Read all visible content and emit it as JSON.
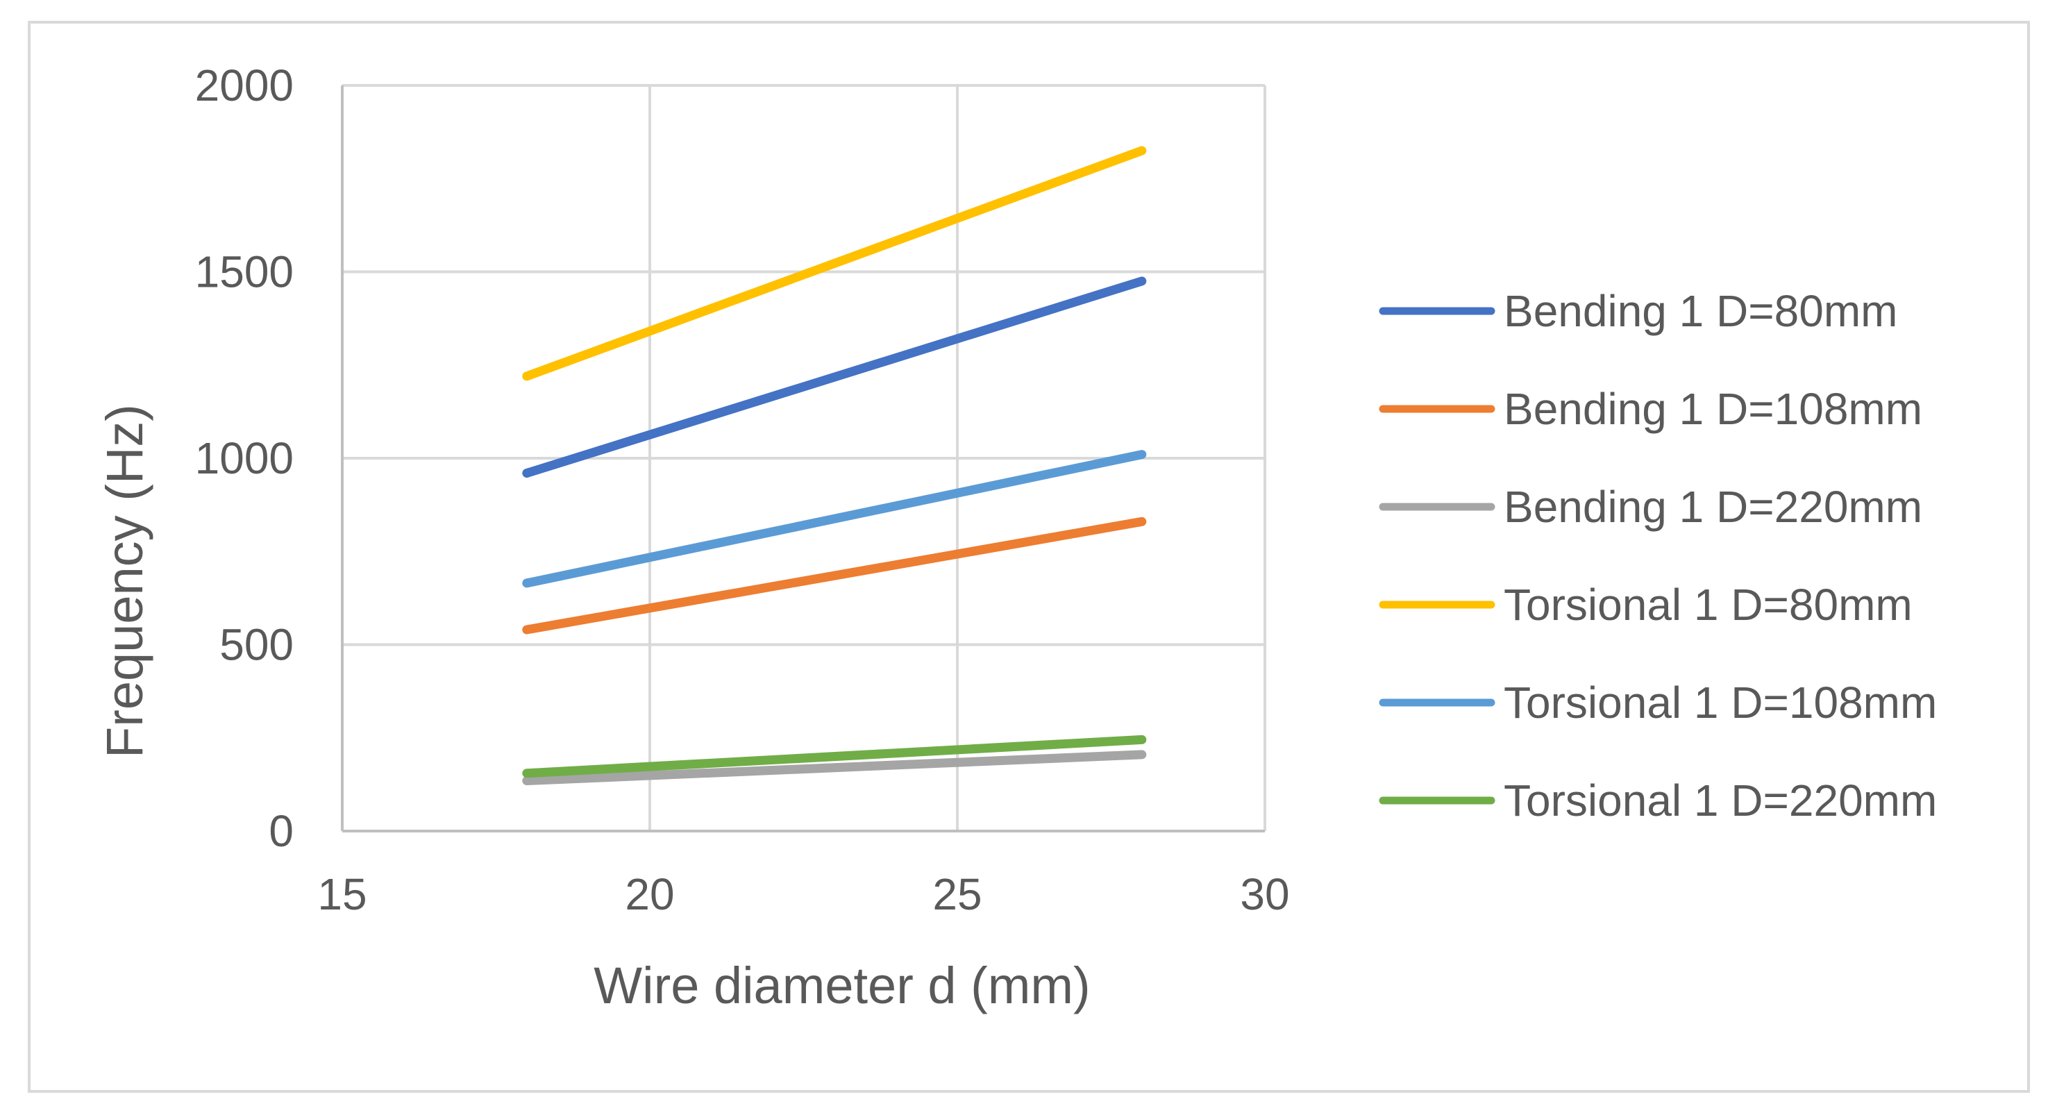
{
  "chart_data": {
    "type": "line",
    "title": "",
    "xlabel": "Wire diameter d (mm)",
    "ylabel": "Frequency (Hz)",
    "xlim": [
      15,
      30
    ],
    "ylim": [
      0,
      2000
    ],
    "xticks": [
      15,
      20,
      25,
      30
    ],
    "yticks": [
      0,
      500,
      1000,
      1500,
      2000
    ],
    "grid": true,
    "legend_position": "right",
    "series": [
      {
        "name": "Bending 1 D=80mm",
        "color": "#4472C4",
        "x": [
          18,
          28
        ],
        "values": [
          960,
          1475
        ]
      },
      {
        "name": "Bending 1 D=108mm",
        "color": "#ED7D31",
        "x": [
          18,
          28
        ],
        "values": [
          540,
          830
        ]
      },
      {
        "name": "Bending 1 D=220mm",
        "color": "#A5A5A5",
        "x": [
          18,
          28
        ],
        "values": [
          135,
          205
        ]
      },
      {
        "name": "Torsional 1 D=80mm",
        "color": "#FFC000",
        "x": [
          18,
          28
        ],
        "values": [
          1220,
          1825
        ]
      },
      {
        "name": "Torsional 1 D=108mm",
        "color": "#5B9BD5",
        "x": [
          18,
          28
        ],
        "values": [
          665,
          1010
        ]
      },
      {
        "name": "Torsional 1 D=220mm",
        "color": "#70AD47",
        "x": [
          18,
          28
        ],
        "values": [
          155,
          245
        ]
      }
    ]
  }
}
